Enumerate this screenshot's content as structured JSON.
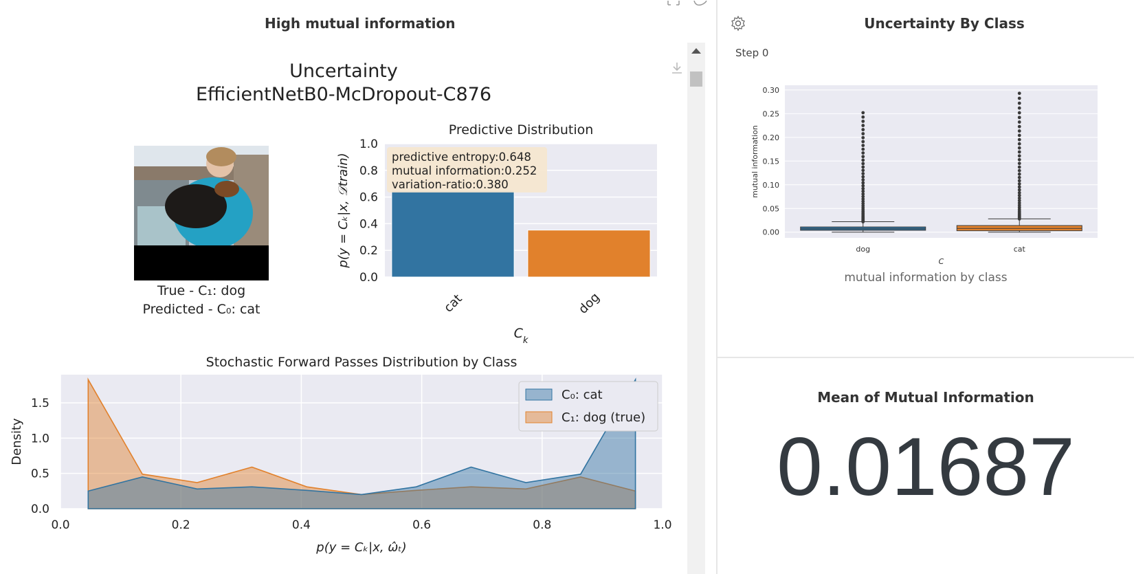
{
  "left_panel": {
    "title": "High mutual information",
    "figure": {
      "suptitle_line1": "Uncertainty",
      "suptitle_line2": "EfficientNetB0-McDropout-C876",
      "image_caption_line1": "True - C₁: dog",
      "image_caption_line2": "Predicted - C₀: cat"
    }
  },
  "right_top_panel": {
    "title": "Uncertainty By Class",
    "step_label": "Step 0",
    "caption": "mutual information by class"
  },
  "right_bottom_panel": {
    "title": "Mean of Mutual Information",
    "value": "0.01687"
  },
  "colors": {
    "blue": "#3274a1",
    "orange": "#e1812c",
    "plot_bg": "#eaeaf2",
    "number": "#343a40"
  },
  "chart_data": [
    {
      "type": "bar",
      "title": "Predictive Distribution",
      "xlabel": "C_k",
      "ylabel": "p(y = C_k|x, D_train)",
      "categories": [
        "cat",
        "dog"
      ],
      "values": [
        0.648,
        0.352
      ],
      "ylim": [
        0,
        1.0
      ],
      "yticks": [
        "0.0",
        "0.2",
        "0.4",
        "0.6",
        "0.8",
        "1.0"
      ],
      "annotation": [
        "predictive entropy:0.648",
        "mutual information:0.252",
        "variation-ratio:0.380"
      ],
      "grid": true
    },
    {
      "type": "area",
      "title": "Stochastic Forward Passes Distribution by Class",
      "xlabel": "p(y = C_k|x, ω̂_t)",
      "ylabel": "Density",
      "xlim": [
        0,
        1.0
      ],
      "ylim": [
        0,
        1.9
      ],
      "xticks": [
        "0.0",
        "0.2",
        "0.4",
        "0.6",
        "0.8",
        "1.0"
      ],
      "yticks": [
        "0.0",
        "0.5",
        "1.0",
        "1.5"
      ],
      "legend_position": "top-right",
      "x": [
        0.046,
        0.136,
        0.227,
        0.318,
        0.409,
        0.5,
        0.591,
        0.682,
        0.773,
        0.864,
        0.955
      ],
      "series": [
        {
          "name": "C₀: cat",
          "values": [
            0.25,
            0.45,
            0.28,
            0.31,
            0.26,
            0.2,
            0.31,
            0.59,
            0.37,
            0.49,
            1.83
          ]
        },
        {
          "name": "C₁: dog (true)",
          "values": [
            1.83,
            0.49,
            0.37,
            0.59,
            0.31,
            0.2,
            0.26,
            0.31,
            0.28,
            0.45,
            0.25
          ]
        }
      ],
      "grid": true
    },
    {
      "type": "box",
      "title": "",
      "xlabel": "C_k",
      "ylabel": "mutual information",
      "categories": [
        "dog",
        "cat"
      ],
      "ylim": [
        -0.012,
        0.31
      ],
      "yticks": [
        "0.00",
        "0.05",
        "0.10",
        "0.15",
        "0.20",
        "0.25",
        "0.30"
      ],
      "boxes": [
        {
          "q1": 0.004,
          "median": 0.007,
          "q3": 0.011,
          "whisker_low": 0.0,
          "whisker_high": 0.022,
          "outlier_max": 0.252
        },
        {
          "q1": 0.003,
          "median": 0.008,
          "q3": 0.014,
          "whisker_low": 0.0,
          "whisker_high": 0.028,
          "outlier_max": 0.293
        }
      ],
      "grid": true
    }
  ]
}
